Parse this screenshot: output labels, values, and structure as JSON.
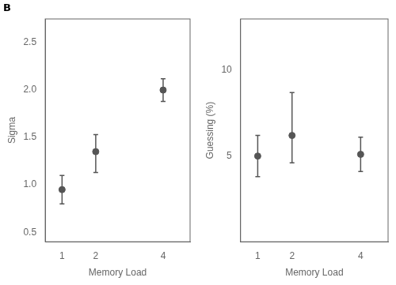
{
  "chart_data": [
    {
      "type": "scatter",
      "annotations": [
        "B"
      ],
      "x": [
        1,
        2,
        4
      ],
      "values": [
        0.95,
        1.35,
        2.0
      ],
      "yerr_lo": [
        0.15,
        0.22,
        0.12
      ],
      "yerr_hi": [
        0.15,
        0.18,
        0.12
      ],
      "color": "#555555",
      "marker": "o",
      "xlim": [
        0.5,
        4.8
      ],
      "xticks": [
        1,
        2,
        4
      ],
      "ylim": [
        0.4,
        2.75
      ],
      "yticks": [
        0.5,
        {
          "value": 1.0,
          "label": "1.0"
        },
        1.5,
        {
          "value": 2.0,
          "label": "2.0"
        },
        2.5
      ],
      "x_label": "Memory Load",
      "y_label": "Sigma",
      "grid": false
    },
    {
      "type": "scatter",
      "x": [
        1,
        2,
        4
      ],
      "values": [
        5.0,
        6.2,
        5.1
      ],
      "yerr_lo": [
        1.2,
        1.6,
        1.0
      ],
      "yerr_hi": [
        1.2,
        2.5,
        1.0
      ],
      "color": "#555555",
      "marker": "o",
      "xlim": [
        0.5,
        4.8
      ],
      "xticks": [
        1,
        2,
        4
      ],
      "ylim": [
        0,
        13
      ],
      "yticks": [
        5,
        10
      ],
      "x_label": "Memory Load",
      "y_label": "Guessing (%)",
      "grid": false
    }
  ]
}
